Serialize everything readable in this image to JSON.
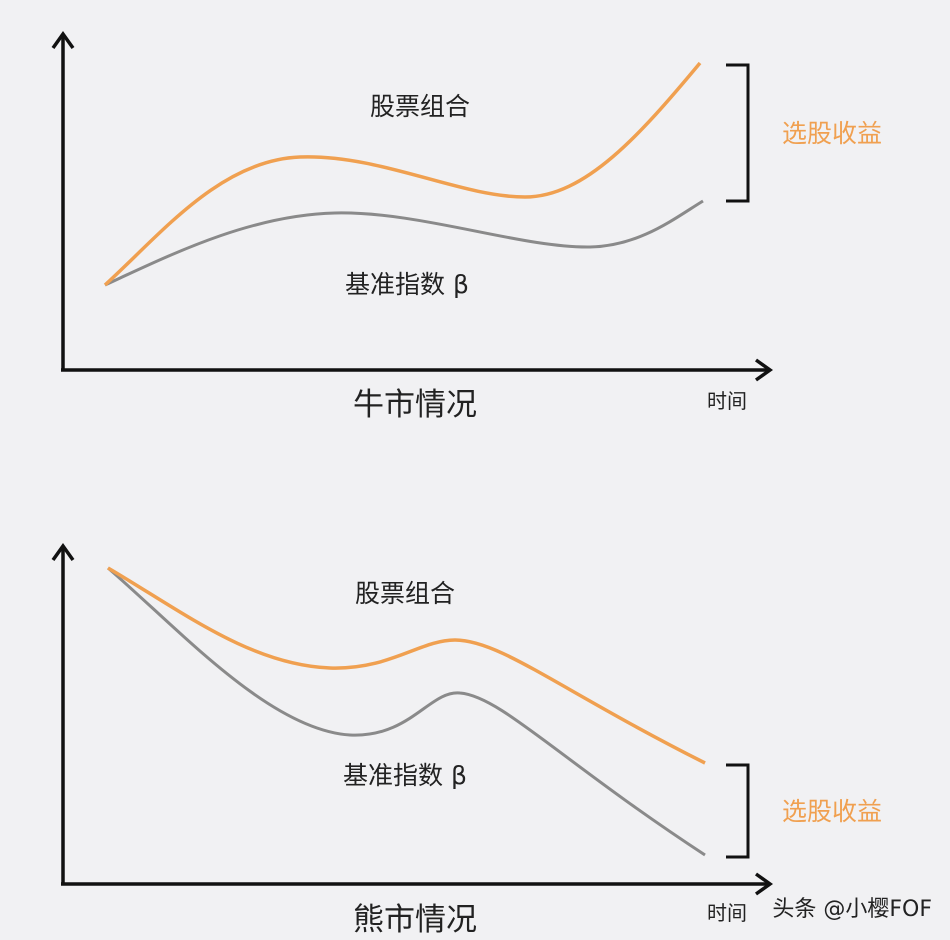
{
  "colors": {
    "portfolio": "#f0a050",
    "benchmark": "#8a8a8a",
    "axis": "#111111",
    "excess_label": "#f0a050",
    "background": "#f1f1f3"
  },
  "panels": [
    {
      "portfolio_label": "股票组合",
      "benchmark_label": "基准指数 β",
      "excess_label": "选股收益",
      "caption": "牛市情况",
      "x_axis_label": "时间"
    },
    {
      "portfolio_label": "股票组合",
      "benchmark_label": "基准指数 β",
      "excess_label": "选股收益",
      "caption": "熊市情况",
      "x_axis_label": "时间"
    }
  ],
  "watermark": "头条 @小樱FOF"
}
